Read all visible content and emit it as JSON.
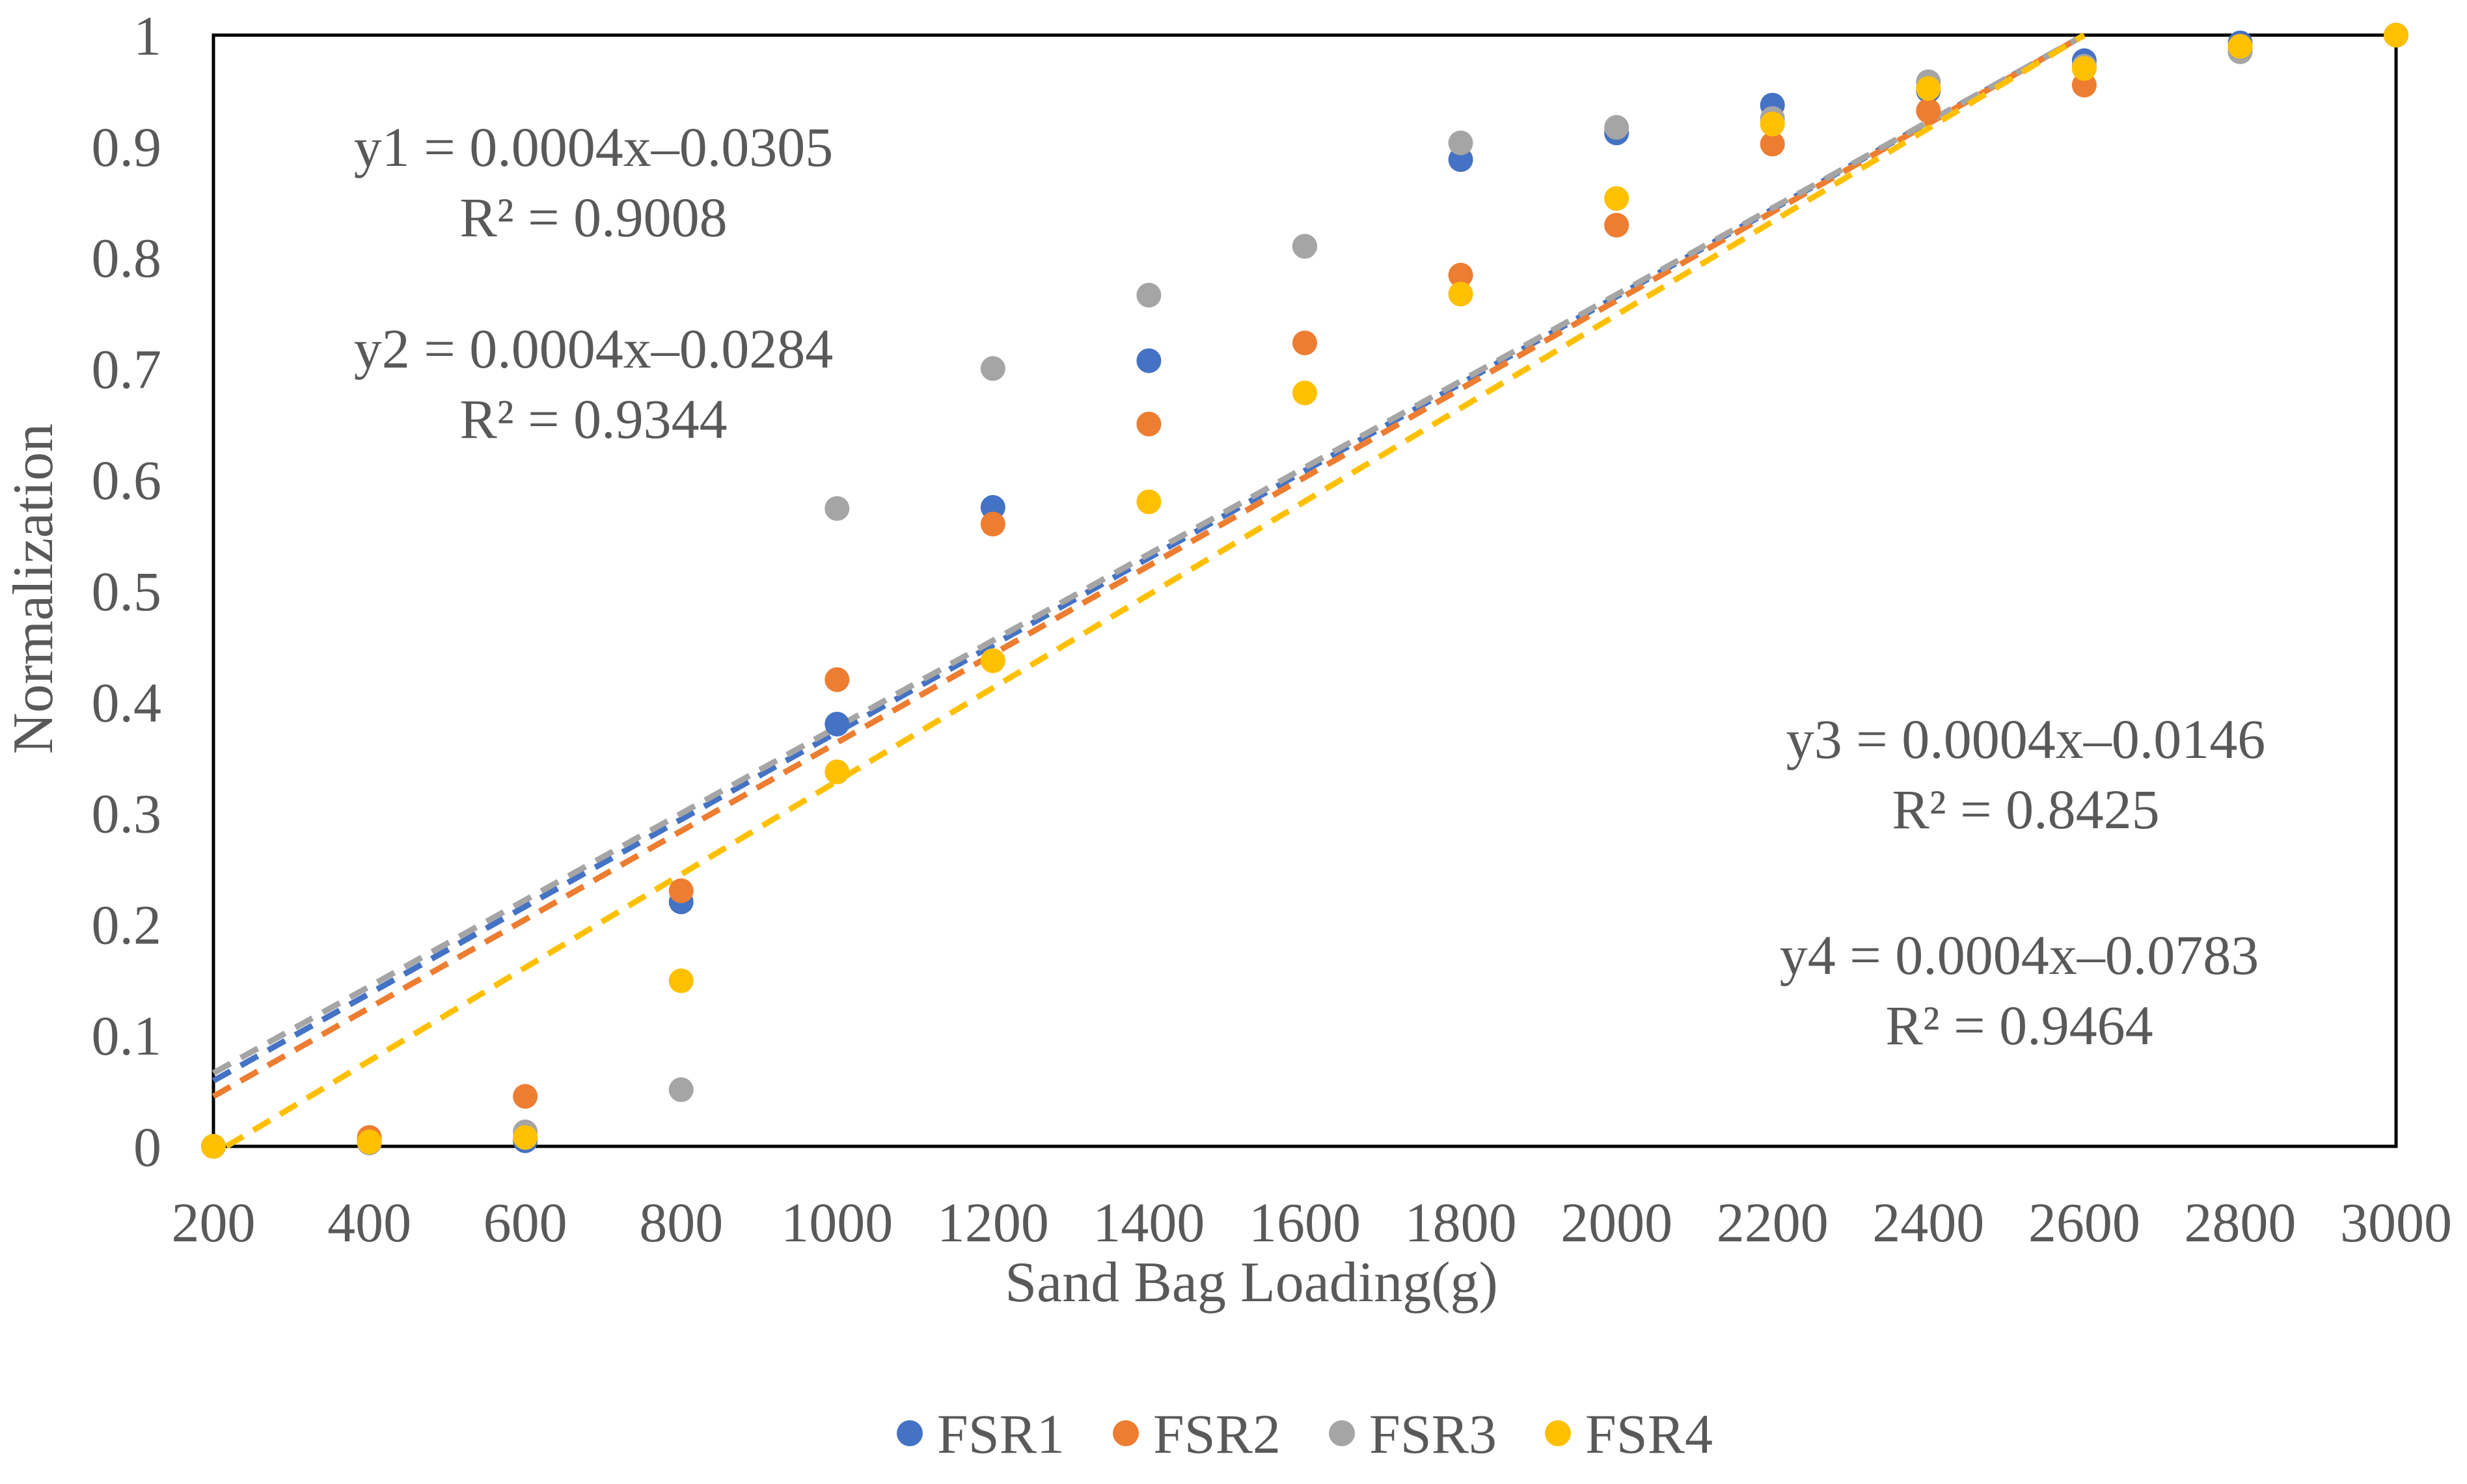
{
  "chart_data": {
    "type": "scatter",
    "title": "",
    "xlabel": "Sand Bag Loading(g)",
    "ylabel": "Normalization",
    "xlim": [
      200,
      3000
    ],
    "ylim": [
      0,
      1
    ],
    "x_ticks": [
      "200",
      "400",
      "600",
      "800",
      "1000",
      "1200",
      "1400",
      "1600",
      "1800",
      "2000",
      "2200",
      "2400",
      "2600",
      "2800",
      "3000"
    ],
    "y_ticks": [
      "0",
      "0.1",
      "0.2",
      "0.3",
      "0.4",
      "0.5",
      "0.6",
      "0.7",
      "0.8",
      "0.9",
      "1"
    ],
    "x": [
      200,
      400,
      600,
      800,
      1000,
      1200,
      1400,
      1600,
      1800,
      2000,
      2200,
      2400,
      2600,
      2800,
      3000
    ],
    "series": [
      {
        "name": "FSR1",
        "color": "#4472C4",
        "values": [
          0,
          0.005,
          0.005,
          0.22,
          0.38,
          0.575,
          0.707,
          0.81,
          0.888,
          0.912,
          0.937,
          0.95,
          0.977,
          0.993,
          1.0
        ],
        "trendline": {
          "slope": 0.0004,
          "intercept": -0.0305,
          "r2": "0.9008",
          "equation": "y1 = 0.0004x–0.0305",
          "r2_label": "R² = 0.9008"
        }
      },
      {
        "name": "FSR2",
        "color": "#ED7D31",
        "values": [
          0,
          0.008,
          0.045,
          0.23,
          0.42,
          0.56,
          0.65,
          0.723,
          0.784,
          0.829,
          0.902,
          0.932,
          0.955,
          0.987,
          1.0
        ],
        "trendline": {
          "slope": 0.0004,
          "intercept": -0.0284,
          "r2": "0.9344",
          "equation": "y2 = 0.0004x–0.0284",
          "r2_label": "R² = 0.9344"
        }
      },
      {
        "name": "FSR3",
        "color": "#A5A5A5",
        "values": [
          0,
          0.003,
          0.013,
          0.051,
          0.574,
          0.7,
          0.766,
          0.81,
          0.903,
          0.917,
          0.925,
          0.958,
          0.972,
          0.985,
          1.0
        ],
        "trendline": {
          "slope": 0.0004,
          "intercept": -0.0146,
          "r2": "0.8425",
          "equation": "y3 = 0.0004x–0.0146",
          "r2_label": "R² = 0.8425"
        }
      },
      {
        "name": "FSR4",
        "color": "#FFC000",
        "values": [
          0,
          0.004,
          0.008,
          0.149,
          0.337,
          0.437,
          0.58,
          0.678,
          0.767,
          0.853,
          0.92,
          0.952,
          0.97,
          0.99,
          1.0
        ],
        "trendline": {
          "slope": 0.0004,
          "intercept": -0.0783,
          "r2": "0.9464",
          "equation": "y4 = 0.0004x–0.0783",
          "r2_label": "R² = 0.9464"
        }
      }
    ],
    "trendline_x_extent": [
      200,
      2600
    ],
    "trendline_intercepts_at_x_min": [
      0.059,
      0.045,
      0.066,
      -0.007
    ],
    "trendline_note": "dashed linear fits",
    "legend": {
      "position": "bottom",
      "entries": [
        "FSR1",
        "FSR2",
        "FSR3",
        "FSR4"
      ]
    },
    "grid": false
  }
}
